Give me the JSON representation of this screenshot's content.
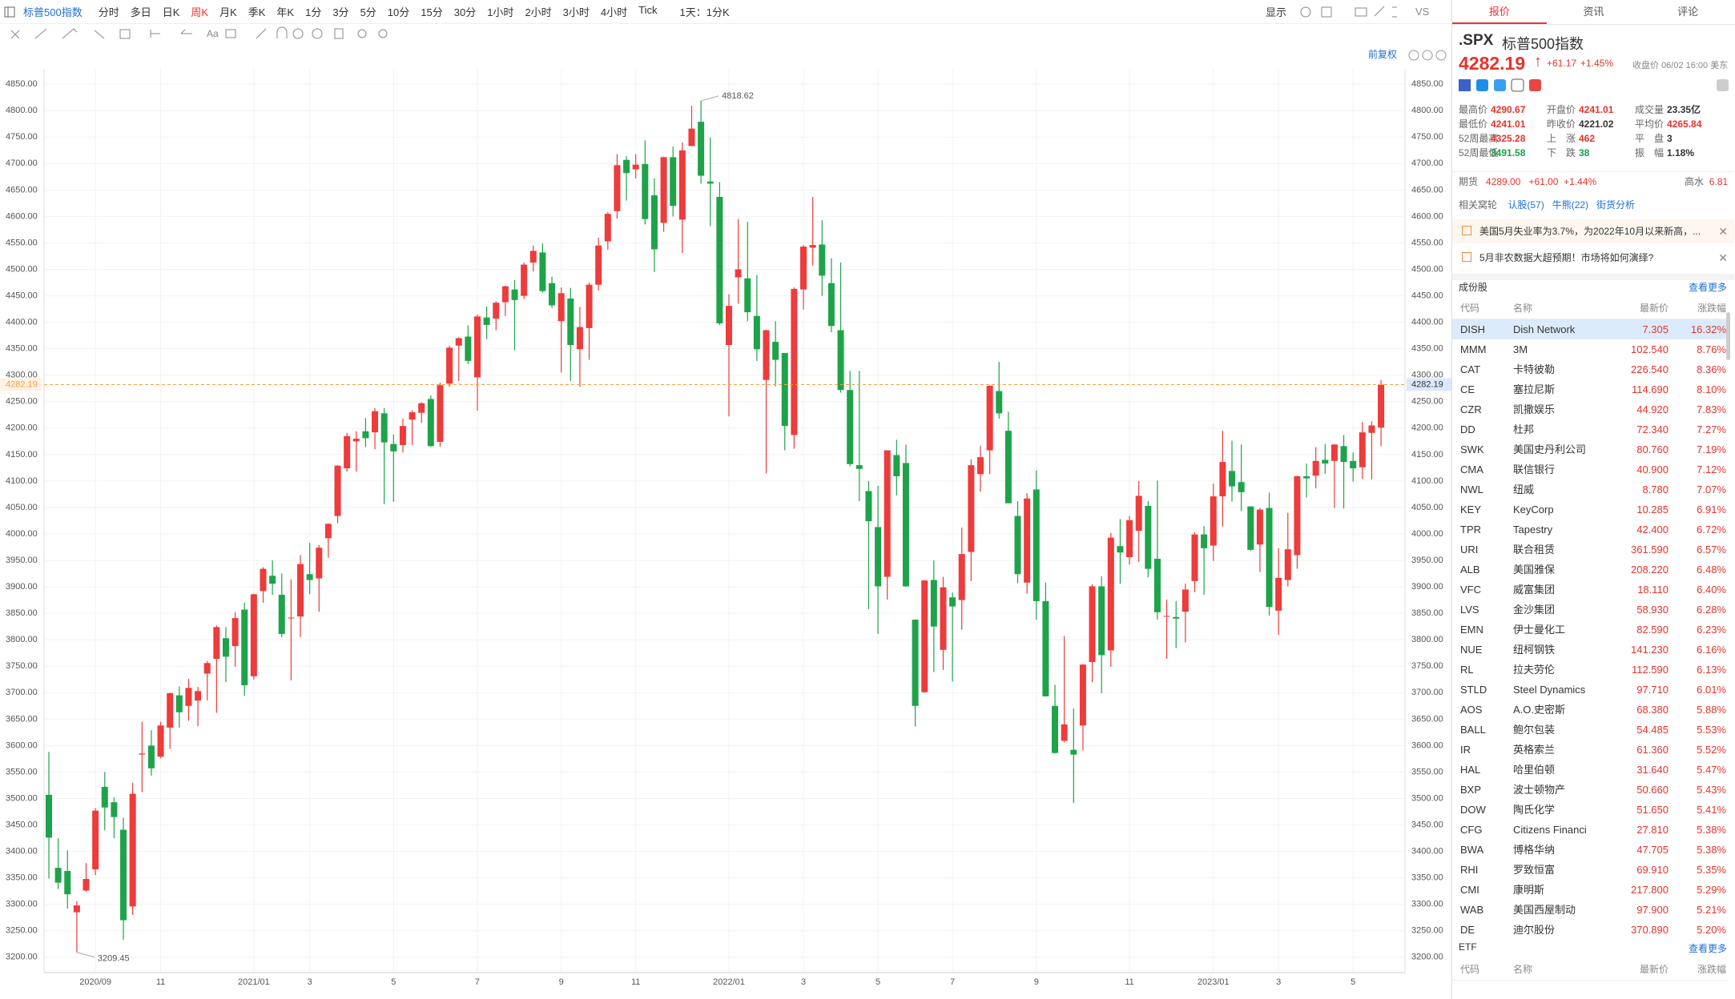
{
  "toolbar": {
    "title": "标普500指数",
    "periods": [
      "分时",
      "多日",
      "日K",
      "周K",
      "月K",
      "季K",
      "年K",
      "1分",
      "3分",
      "5分",
      "10分",
      "15分",
      "30分",
      "1小时",
      "2小时",
      "3小时",
      "4小时",
      "Tick"
    ],
    "active_period": "周K",
    "kline_setting": "1天：1分K",
    "display": "显示",
    "vs": "VS",
    "adjust": "前复权"
  },
  "chart_data": {
    "type": "candlestick",
    "up_color": "#ee3b3b",
    "down_color": "#1ea34a",
    "grid": true,
    "price_line_color": "#f5a03c",
    "ylim": [
      3171,
      4879
    ],
    "yticks": [
      {
        "value": 3200,
        "label": "3200.00"
      },
      {
        "value": 3250,
        "label": "3250.00"
      },
      {
        "value": 3300,
        "label": "3300.00"
      },
      {
        "value": 3350,
        "label": "3350.00"
      },
      {
        "value": 3400,
        "label": "3400.00"
      },
      {
        "value": 3450,
        "label": "3450.00"
      },
      {
        "value": 3500,
        "label": "3500.00"
      },
      {
        "value": 3550,
        "label": "3550.00"
      },
      {
        "value": 3600,
        "label": "3600.00"
      },
      {
        "value": 3650,
        "label": "3650.00"
      },
      {
        "value": 3700,
        "label": "3700.00"
      },
      {
        "value": 3750,
        "label": "3750.00"
      },
      {
        "value": 3800,
        "label": "3800.00"
      },
      {
        "value": 3850,
        "label": "3850.00"
      },
      {
        "value": 3900,
        "label": "3900.00"
      },
      {
        "value": 3950,
        "label": "3950.00"
      },
      {
        "value": 4000,
        "label": "4000.00"
      },
      {
        "value": 4050,
        "label": "4050.00"
      },
      {
        "value": 4100,
        "label": "4100.00"
      },
      {
        "value": 4150,
        "label": "4150.00"
      },
      {
        "value": 4200,
        "label": "4200.00"
      },
      {
        "value": 4250,
        "label": "4250.00"
      },
      {
        "value": 4300,
        "label": "4300.00"
      },
      {
        "value": 4350,
        "label": "4350.00"
      },
      {
        "value": 4400,
        "label": "4400.00"
      },
      {
        "value": 4450,
        "label": "4450.00"
      },
      {
        "value": 4500,
        "label": "4500.00"
      },
      {
        "value": 4550,
        "label": "4550.00"
      },
      {
        "value": 4600,
        "label": "4600.00"
      },
      {
        "value": 4650,
        "label": "4650.00"
      },
      {
        "value": 4700,
        "label": "4700.00"
      },
      {
        "value": 4750,
        "label": "4750.00"
      },
      {
        "value": 4800,
        "label": "4800.00"
      },
      {
        "value": 4850,
        "label": "4850.00"
      }
    ],
    "xticks": [
      {
        "value": 5,
        "label": "2020/09"
      },
      {
        "value": 12,
        "label": "11"
      },
      {
        "value": 22,
        "label": "2021/01"
      },
      {
        "value": 28,
        "label": "3"
      },
      {
        "value": 37,
        "label": "5"
      },
      {
        "value": 46,
        "label": "7"
      },
      {
        "value": 55,
        "label": "9"
      },
      {
        "value": 63,
        "label": "11"
      },
      {
        "value": 73,
        "label": "2022/01"
      },
      {
        "value": 81,
        "label": "3"
      },
      {
        "value": 89,
        "label": "5"
      },
      {
        "value": 97,
        "label": "7"
      },
      {
        "value": 106,
        "label": "9"
      },
      {
        "value": 116,
        "label": "11"
      },
      {
        "value": 125,
        "label": "2023/01"
      },
      {
        "value": 132,
        "label": "3"
      },
      {
        "value": 140,
        "label": "5"
      }
    ],
    "high": 4818.62,
    "low": 3209.45,
    "last_price": 4282.19,
    "ohlc": [
      [
        3507,
        3588,
        3349,
        3426
      ],
      [
        3369,
        3425,
        3329,
        3341
      ],
      [
        3363,
        3402,
        3292,
        3319
      ],
      [
        3285,
        3306,
        3209.45,
        3298
      ],
      [
        3326,
        3378,
        3324,
        3348
      ],
      [
        3366,
        3482,
        3355,
        3477
      ],
      [
        3522,
        3550,
        3440,
        3483
      ],
      [
        3493,
        3502,
        3425,
        3465
      ],
      [
        3441,
        3464,
        3233,
        3270
      ],
      [
        3296,
        3530,
        3280,
        3509
      ],
      [
        3583,
        3645,
        3512,
        3585
      ],
      [
        3600,
        3629,
        3543,
        3557
      ],
      [
        3579,
        3645,
        3576,
        3638
      ],
      [
        3634,
        3700,
        3594,
        3699
      ],
      [
        3695,
        3712,
        3634,
        3663
      ],
      [
        3675,
        3726,
        3647,
        3709
      ],
      [
        3685,
        3711,
        3637,
        3703
      ],
      [
        3736,
        3760,
        3685,
        3756
      ],
      [
        3764,
        3827,
        3662,
        3824
      ],
      [
        3803,
        3824,
        3720,
        3768
      ],
      [
        3788,
        3852,
        3749,
        3841
      ],
      [
        3857,
        3870,
        3694,
        3714
      ],
      [
        3731,
        3887,
        3725,
        3886
      ],
      [
        3892,
        3937,
        3870,
        3934
      ],
      [
        3921,
        3950,
        3885,
        3906
      ],
      [
        3885,
        3925,
        3805,
        3811
      ],
      [
        3842,
        3914,
        3723,
        3842
      ],
      [
        3844,
        3960,
        3805,
        3943
      ],
      [
        3924,
        3983,
        3886,
        3913
      ],
      [
        3916,
        3979,
        3853,
        3974
      ],
      [
        3992,
        4020,
        3955,
        4019
      ],
      [
        4034,
        4130,
        4020,
        4129
      ],
      [
        4124,
        4191,
        4118,
        4185
      ],
      [
        4175,
        4194,
        4118,
        4180
      ],
      [
        4194,
        4219,
        4164,
        4181
      ],
      [
        4192,
        4238,
        4160,
        4232
      ],
      [
        4228,
        4238,
        4056,
        4173
      ],
      [
        4170,
        4188,
        4061,
        4156
      ],
      [
        4168,
        4218,
        4154,
        4204
      ],
      [
        4216,
        4234,
        4168,
        4230
      ],
      [
        4229,
        4249,
        4210,
        4247
      ],
      [
        4255,
        4262,
        4165,
        4166
      ],
      [
        4174,
        4286,
        4165,
        4281
      ],
      [
        4284,
        4356,
        4278,
        4352
      ],
      [
        4356,
        4372,
        4289,
        4370
      ],
      [
        4373,
        4394,
        4321,
        4327
      ],
      [
        4296,
        4415,
        4233,
        4411
      ],
      [
        4409,
        4430,
        4368,
        4395
      ],
      [
        4407,
        4440,
        4385,
        4437
      ],
      [
        4438,
        4469,
        4412,
        4468
      ],
      [
        4462,
        4480,
        4347,
        4442
      ],
      [
        4450,
        4513,
        4444,
        4509
      ],
      [
        4513,
        4545,
        4496,
        4535
      ],
      [
        4532,
        4549,
        4456,
        4459
      ],
      [
        4474,
        4486,
        4427,
        4432
      ],
      [
        4402,
        4466,
        4305,
        4455
      ],
      [
        4445,
        4465,
        4289,
        4357
      ],
      [
        4349,
        4429,
        4278,
        4391
      ],
      [
        4389,
        4475,
        4329,
        4471
      ],
      [
        4471,
        4560,
        4460,
        4545
      ],
      [
        4553,
        4608,
        4537,
        4605
      ],
      [
        4610,
        4718,
        4596,
        4697
      ],
      [
        4707,
        4714,
        4630,
        4682
      ],
      [
        4689,
        4718,
        4672,
        4698
      ],
      [
        4699,
        4744,
        4585,
        4595
      ],
      [
        4640,
        4672,
        4495,
        4538
      ],
      [
        4588,
        4713,
        4571,
        4712
      ],
      [
        4712,
        4732,
        4600,
        4620
      ],
      [
        4594,
        4740,
        4531,
        4725
      ],
      [
        4733,
        4809,
        4733,
        4766
      ],
      [
        4779,
        4818.62,
        4662,
        4677
      ],
      [
        4666,
        4749,
        4582,
        4662
      ],
      [
        4637,
        4665,
        4395,
        4398
      ],
      [
        4357,
        4453,
        4222,
        4431
      ],
      [
        4485,
        4595,
        4435,
        4500
      ],
      [
        4483,
        4590,
        4402,
        4419
      ],
      [
        4412,
        4489,
        4327,
        4349
      ],
      [
        4291,
        4386,
        4114,
        4385
      ],
      [
        4363,
        4402,
        4279,
        4329
      ],
      [
        4342,
        4342,
        4158,
        4204
      ],
      [
        4187,
        4466,
        4161,
        4463
      ],
      [
        4462,
        4546,
        4424,
        4543
      ],
      [
        4541,
        4637,
        4507,
        4546
      ],
      [
        4547,
        4593,
        4450,
        4488
      ],
      [
        4474,
        4521,
        4381,
        4393
      ],
      [
        4385,
        4513,
        4267,
        4272
      ],
      [
        4272,
        4308,
        4128,
        4132
      ],
      [
        4130,
        4308,
        4062,
        4123
      ],
      [
        4081,
        4100,
        3858,
        4024
      ],
      [
        4013,
        4091,
        3811,
        3901
      ],
      [
        3919,
        4158,
        3876,
        4158
      ],
      [
        4149,
        4178,
        4073,
        4109
      ],
      [
        4134,
        4169,
        3900,
        3901
      ],
      [
        3838,
        3838,
        3636,
        3675
      ],
      [
        3701,
        3913,
        3700,
        3912
      ],
      [
        3913,
        3950,
        3739,
        3825
      ],
      [
        3781,
        3919,
        3743,
        3899
      ],
      [
        3880,
        3889,
        3721,
        3863
      ],
      [
        3875,
        4012,
        3819,
        3962
      ],
      [
        3966,
        4141,
        3911,
        4130
      ],
      [
        4113,
        4167,
        4080,
        4145
      ],
      [
        4158,
        4281,
        4113,
        4280
      ],
      [
        4270,
        4325,
        4218,
        4228
      ],
      [
        4195,
        4231,
        4058,
        4058
      ],
      [
        4034,
        4062,
        3907,
        3924
      ],
      [
        3908,
        4077,
        3887,
        4067
      ],
      [
        4084,
        4120,
        3838,
        3873
      ],
      [
        3873,
        3908,
        3693,
        3693
      ],
      [
        3675,
        3715,
        3585,
        3586
      ],
      [
        3609,
        3807,
        3606,
        3640
      ],
      [
        3592,
        3670,
        3491.58,
        3583
      ],
      [
        3638,
        3754,
        3591,
        3753
      ],
      [
        3758,
        3905,
        3720,
        3901
      ],
      [
        3901,
        3920,
        3699,
        3771
      ],
      [
        3780,
        4002,
        3749,
        3993
      ],
      [
        3977,
        4028,
        3906,
        3965
      ],
      [
        3956,
        4034,
        3942,
        4026
      ],
      [
        4006,
        4100,
        3947,
        4072
      ],
      [
        4053,
        4062,
        3918,
        3934
      ],
      [
        3953,
        4101,
        3838,
        3852
      ],
      [
        3845,
        3876,
        3764,
        3845
      ],
      [
        3843,
        3873,
        3784,
        3840
      ],
      [
        3853,
        3906,
        3795,
        3895
      ],
      [
        3911,
        4003,
        3890,
        3999
      ],
      [
        3999,
        4015,
        3885,
        3973
      ],
      [
        3978,
        4095,
        3949,
        4071
      ],
      [
        4071,
        4195,
        4014,
        4136
      ],
      [
        4119,
        4176,
        4061,
        4090
      ],
      [
        4098,
        4169,
        4043,
        4079
      ],
      [
        4052,
        4052,
        3968,
        3970
      ],
      [
        3980,
        4049,
        3928,
        4046
      ],
      [
        4049,
        4078,
        3846,
        3862
      ],
      [
        3855,
        3973,
        3809,
        3917
      ],
      [
        3913,
        4040,
        3901,
        3971
      ],
      [
        3960,
        4110,
        3934,
        4109
      ],
      [
        4109,
        4133,
        4069,
        4105
      ],
      [
        4110,
        4164,
        4086,
        4138
      ],
      [
        4140,
        4170,
        4114,
        4133
      ],
      [
        4138,
        4170,
        4049,
        4169
      ],
      [
        4166,
        4187,
        4048,
        4136
      ],
      [
        4138,
        4154,
        4099,
        4124
      ],
      [
        4126,
        4212,
        4104,
        4192
      ],
      [
        4191,
        4213,
        4103,
        4205
      ],
      [
        4201,
        4290.67,
        4166,
        4282.19
      ]
    ]
  },
  "quote": {
    "tabs": [
      "报价",
      "资讯",
      "评论"
    ],
    "symbol": ".SPX",
    "name": "标普500指数",
    "price": "4282.19",
    "change": "+61.17",
    "change_pct": "+1.45%",
    "close_info": "收盘价 06/02 16:00 美东",
    "stats": [
      [
        {
          "label": "最高价",
          "value": "4290.67",
          "tone": "up"
        },
        {
          "label": "开盘价",
          "value": "4241.01",
          "tone": "up"
        },
        {
          "label": "成交量",
          "value": "23.35亿",
          "tone": "flat"
        }
      ],
      [
        {
          "label": "最低价",
          "value": "4241.01",
          "tone": "up"
        },
        {
          "label": "昨收价",
          "value": "4221.02",
          "tone": "flat"
        },
        {
          "label": "平均价",
          "value": "4265.84",
          "tone": "up"
        }
      ],
      [
        {
          "label": "52周最高",
          "value": "4325.28",
          "tone": "up"
        },
        {
          "label": "上　涨",
          "value": "462",
          "tone": "up"
        },
        {
          "label": "平　盘",
          "value": "3",
          "tone": "flat"
        }
      ],
      [
        {
          "label": "52周最低",
          "value": "3491.58",
          "tone": "down"
        },
        {
          "label": "下　跌",
          "value": "38",
          "tone": "down"
        },
        {
          "label": "振　幅",
          "value": "1.18%",
          "tone": "flat"
        }
      ]
    ],
    "futures": {
      "label": "期货",
      "price": "4289.00",
      "change": "+61.00",
      "change_pct": "+1.44%",
      "premium_label": "高水",
      "premium": "6.81"
    },
    "warrants": {
      "label": "相关窝轮",
      "links": [
        "认股(57)",
        "牛熊(22)",
        "街货分析"
      ]
    },
    "news": [
      "美国5月失业率为3.7%，为2022年10月以来新高，...",
      "5月非农数据大超预期！市场将如何演绎?"
    ]
  },
  "constituents": {
    "title": "成份股",
    "more": "查看更多",
    "headers": [
      "代码",
      "名称",
      "最新价",
      "涨跌幅"
    ],
    "rows": [
      [
        "DISH",
        "Dish Network",
        "7.305",
        "16.32%"
      ],
      [
        "MMM",
        "3M",
        "102.540",
        "8.76%"
      ],
      [
        "CAT",
        "卡特彼勒",
        "226.540",
        "8.36%"
      ],
      [
        "CE",
        "塞拉尼斯",
        "114.690",
        "8.10%"
      ],
      [
        "CZR",
        "凯撒娱乐",
        "44.920",
        "7.83%"
      ],
      [
        "DD",
        "杜邦",
        "72.340",
        "7.27%"
      ],
      [
        "SWK",
        "美国史丹利公司",
        "80.760",
        "7.19%"
      ],
      [
        "CMA",
        "联信银行",
        "40.900",
        "7.12%"
      ],
      [
        "NWL",
        "纽威",
        "8.780",
        "7.07%"
      ],
      [
        "KEY",
        "KeyCorp",
        "10.285",
        "6.91%"
      ],
      [
        "TPR",
        "Tapestry",
        "42.400",
        "6.72%"
      ],
      [
        "URI",
        "联合租赁",
        "361.590",
        "6.57%"
      ],
      [
        "ALB",
        "美国雅保",
        "208.220",
        "6.48%"
      ],
      [
        "VFC",
        "威富集团",
        "18.110",
        "6.40%"
      ],
      [
        "LVS",
        "金沙集团",
        "58.930",
        "6.28%"
      ],
      [
        "EMN",
        "伊士曼化工",
        "82.590",
        "6.23%"
      ],
      [
        "NUE",
        "纽柯钢铁",
        "141.230",
        "6.16%"
      ],
      [
        "RL",
        "拉夫劳伦",
        "112.590",
        "6.13%"
      ],
      [
        "STLD",
        "Steel Dynamics",
        "97.710",
        "6.01%"
      ],
      [
        "AOS",
        "A.O.史密斯",
        "68.380",
        "5.88%"
      ],
      [
        "BALL",
        "鲍尔包装",
        "54.485",
        "5.53%"
      ],
      [
        "IR",
        "英格索兰",
        "61.360",
        "5.52%"
      ],
      [
        "HAL",
        "哈里伯顿",
        "31.640",
        "5.47%"
      ],
      [
        "BXP",
        "波士顿物产",
        "50.660",
        "5.43%"
      ],
      [
        "DOW",
        "陶氏化学",
        "51.650",
        "5.41%"
      ],
      [
        "CFG",
        "Citizens Financi",
        "27.810",
        "5.38%"
      ],
      [
        "BWA",
        "博格华纳",
        "47.705",
        "5.38%"
      ],
      [
        "RHI",
        "罗致恒富",
        "69.910",
        "5.35%"
      ],
      [
        "CMI",
        "康明斯",
        "217.800",
        "5.29%"
      ],
      [
        "WAB",
        "美国西屋制动",
        "97.900",
        "5.21%"
      ],
      [
        "DE",
        "迪尔股份",
        "370.890",
        "5.20%"
      ]
    ]
  },
  "etf": {
    "title": "ETF",
    "more": "查看更多",
    "headers": [
      "代码",
      "名称",
      "最新价",
      "涨跌幅"
    ]
  }
}
